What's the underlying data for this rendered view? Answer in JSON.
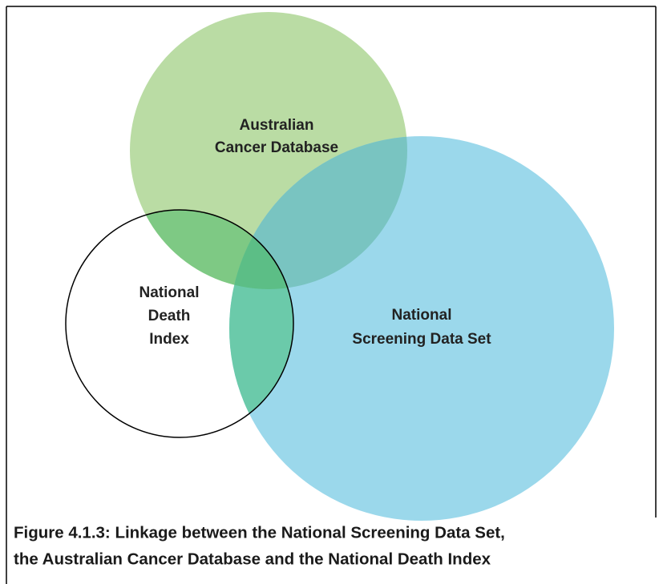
{
  "nodes": [
    {
      "label": [
        "Australian",
        "Cancer Database"
      ]
    },
    {
      "label": [
        "National",
        "Death",
        "Index"
      ]
    },
    {
      "label": [
        "National",
        "Screening Data Set"
      ]
    }
  ],
  "caption": [
    "Figure 4.1.3: Linkage between the National Screening Data Set,",
    "the Australian Cancer Database and the National Death Index"
  ]
}
